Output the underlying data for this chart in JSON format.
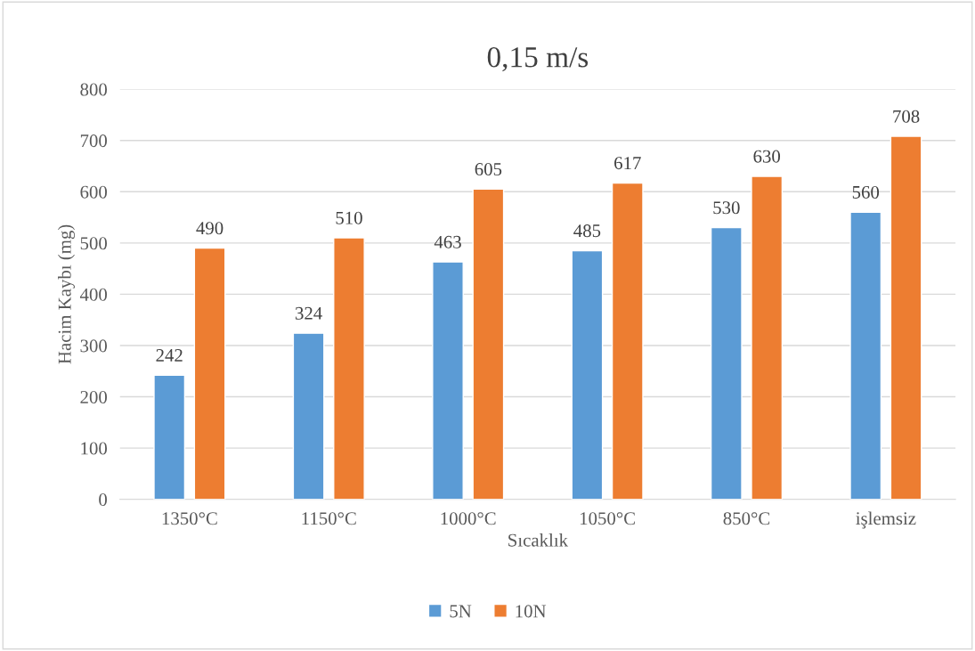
{
  "chart_data": {
    "type": "bar",
    "title": "0,15 m/s",
    "xlabel": "Sıcaklık",
    "ylabel": "Hacim Kaybı (mg)",
    "categories": [
      "1350°C",
      "1150°C",
      "1000°C",
      "1050°C",
      "850°C",
      "işlemsiz"
    ],
    "series": [
      {
        "name": "5N",
        "color": "#5b9bd5",
        "values": [
          242,
          324,
          463,
          485,
          530,
          560
        ]
      },
      {
        "name": "10N",
        "color": "#ed7d31",
        "values": [
          490,
          510,
          605,
          617,
          630,
          708
        ]
      }
    ],
    "ylim": [
      0,
      800
    ],
    "yticks": [
      0,
      100,
      200,
      300,
      400,
      500,
      600,
      700,
      800
    ],
    "grid": "y",
    "legend": "bottom",
    "data_labels": true
  }
}
